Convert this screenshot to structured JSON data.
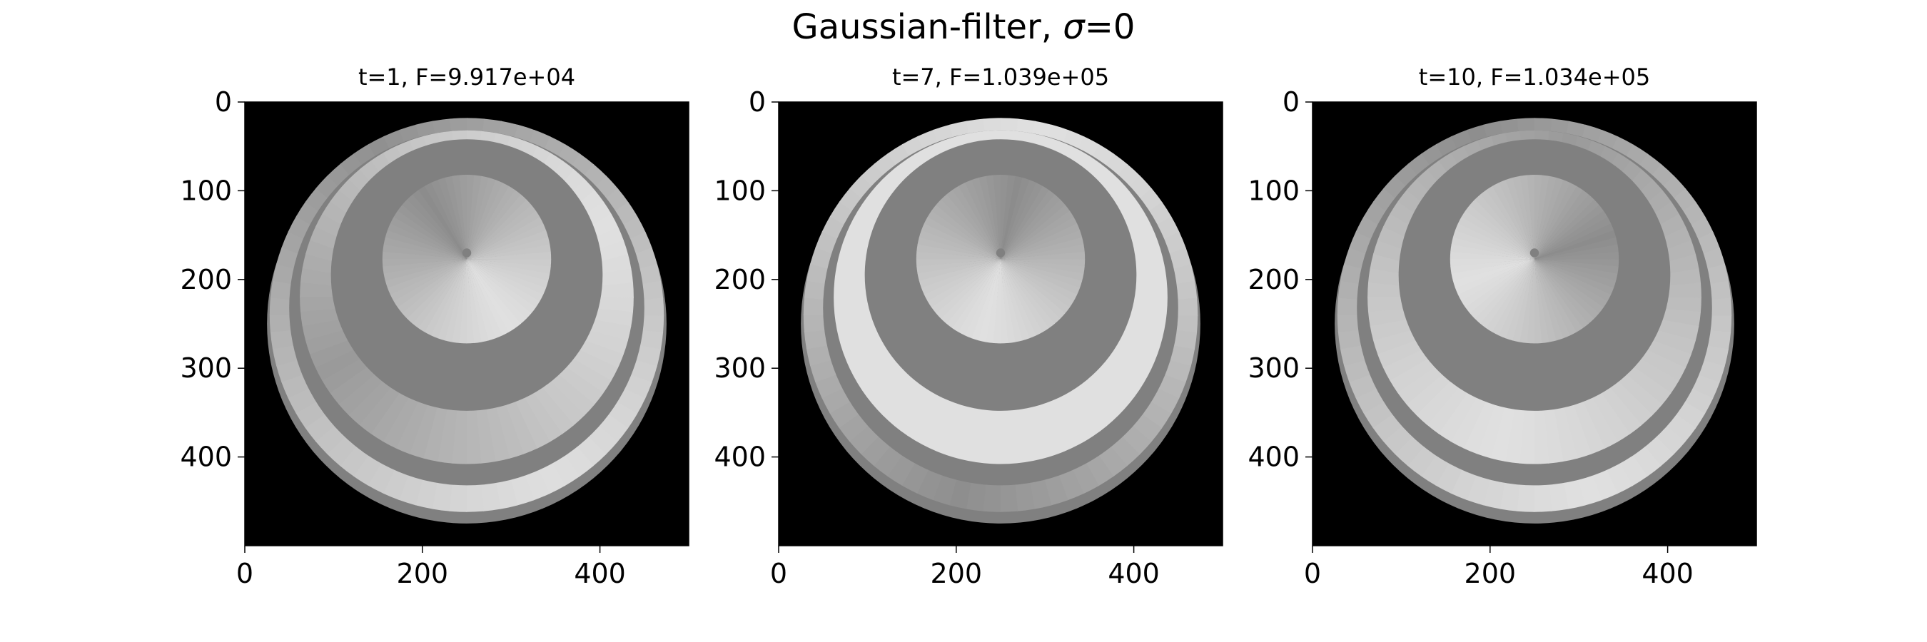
{
  "figure": {
    "title": "Gaussian-filter, σ=0",
    "title_prefix": "Gaussian-filter, ",
    "title_symbol": "σ",
    "title_suffix": "=0"
  },
  "chart_data": [
    {
      "type": "heatmap",
      "title": "t=1, F=9.917e+04",
      "xlim": [
        0,
        500
      ],
      "ylim": [
        500,
        0
      ],
      "xticks": [
        0,
        200,
        400
      ],
      "yticks": [
        0,
        100,
        200,
        300,
        400
      ],
      "colormap": "gray",
      "layers": [
        {
          "shape": "disk",
          "cx": 250,
          "cy": 250,
          "r": 225,
          "fill": "#808080"
        },
        {
          "shape": "disk",
          "cx": 250,
          "cy": 240,
          "r": 222,
          "fill": "#dedede",
          "shade_to": "#909090",
          "shade_start_deg": 60
        },
        {
          "shape": "disk",
          "cx": 250,
          "cy": 232,
          "r": 200,
          "fill": "#808080"
        },
        {
          "shape": "disk",
          "cx": 250,
          "cy": 220,
          "r": 188,
          "fill": "#e0e0e0",
          "shade_to": "#9a9a9a",
          "shade_start_deg": 330
        },
        {
          "shape": "disk",
          "cx": 250,
          "cy": 195,
          "r": 153,
          "fill": "#808080"
        },
        {
          "shape": "disk",
          "cx": 250,
          "cy": 177,
          "r": 95,
          "fill": "#e0e0e0",
          "shade_to": "#8c8c8c",
          "shade_start_deg": 55
        },
        {
          "shape": "disk",
          "cx": 250,
          "cy": 170,
          "r": 5,
          "fill": "#808080"
        }
      ]
    },
    {
      "type": "heatmap",
      "title": "t=7, F=1.039e+05",
      "xlim": [
        0,
        500
      ],
      "ylim": [
        500,
        0
      ],
      "xticks": [
        0,
        200,
        400
      ],
      "yticks": [
        0,
        100,
        200,
        300,
        400
      ],
      "colormap": "gray",
      "layers": [
        {
          "shape": "disk",
          "cx": 250,
          "cy": 250,
          "r": 225,
          "fill": "#808080"
        },
        {
          "shape": "disk",
          "cx": 250,
          "cy": 240,
          "r": 222,
          "fill": "#e0e0e0",
          "shade_to": "#8e8e8e",
          "shade_start_deg": 280
        },
        {
          "shape": "disk",
          "cx": 250,
          "cy": 232,
          "r": 200,
          "fill": "#808080"
        },
        {
          "shape": "disk",
          "cx": 250,
          "cy": 220,
          "r": 188,
          "fill": "#e0e0e0",
          "shade_to": "#e0e0e0",
          "shade_start_deg": 0
        },
        {
          "shape": "disk",
          "cx": 250,
          "cy": 195,
          "r": 153,
          "fill": "#808080"
        },
        {
          "shape": "disk",
          "cx": 250,
          "cy": 177,
          "r": 95,
          "fill": "#e0e0e0",
          "shade_to": "#8c8c8c",
          "shade_start_deg": 100
        },
        {
          "shape": "disk",
          "cx": 250,
          "cy": 170,
          "r": 5,
          "fill": "#808080"
        }
      ]
    },
    {
      "type": "heatmap",
      "title": "t=10, F=1.034e+05",
      "xlim": [
        0,
        500
      ],
      "ylim": [
        500,
        0
      ],
      "xticks": [
        0,
        200,
        400
      ],
      "yticks": [
        0,
        100,
        200,
        300,
        400
      ],
      "colormap": "gray",
      "layers": [
        {
          "shape": "disk",
          "cx": 250,
          "cy": 250,
          "r": 225,
          "fill": "#808080"
        },
        {
          "shape": "disk",
          "cx": 250,
          "cy": 240,
          "r": 222,
          "fill": "#e0e0e0",
          "shade_to": "#8e8e8e",
          "shade_start_deg": 70
        },
        {
          "shape": "disk",
          "cx": 250,
          "cy": 232,
          "r": 200,
          "fill": "#808080"
        },
        {
          "shape": "disk",
          "cx": 250,
          "cy": 220,
          "r": 188,
          "fill": "#e0e0e0",
          "shade_to": "#9a9a9a",
          "shade_start_deg": 100
        },
        {
          "shape": "disk",
          "cx": 250,
          "cy": 195,
          "r": 153,
          "fill": "#808080"
        },
        {
          "shape": "disk",
          "cx": 250,
          "cy": 177,
          "r": 95,
          "fill": "#e0e0e0",
          "shade_to": "#8c8c8c",
          "shade_start_deg": 160
        },
        {
          "shape": "disk",
          "cx": 250,
          "cy": 170,
          "r": 5,
          "fill": "#808080"
        }
      ]
    }
  ]
}
